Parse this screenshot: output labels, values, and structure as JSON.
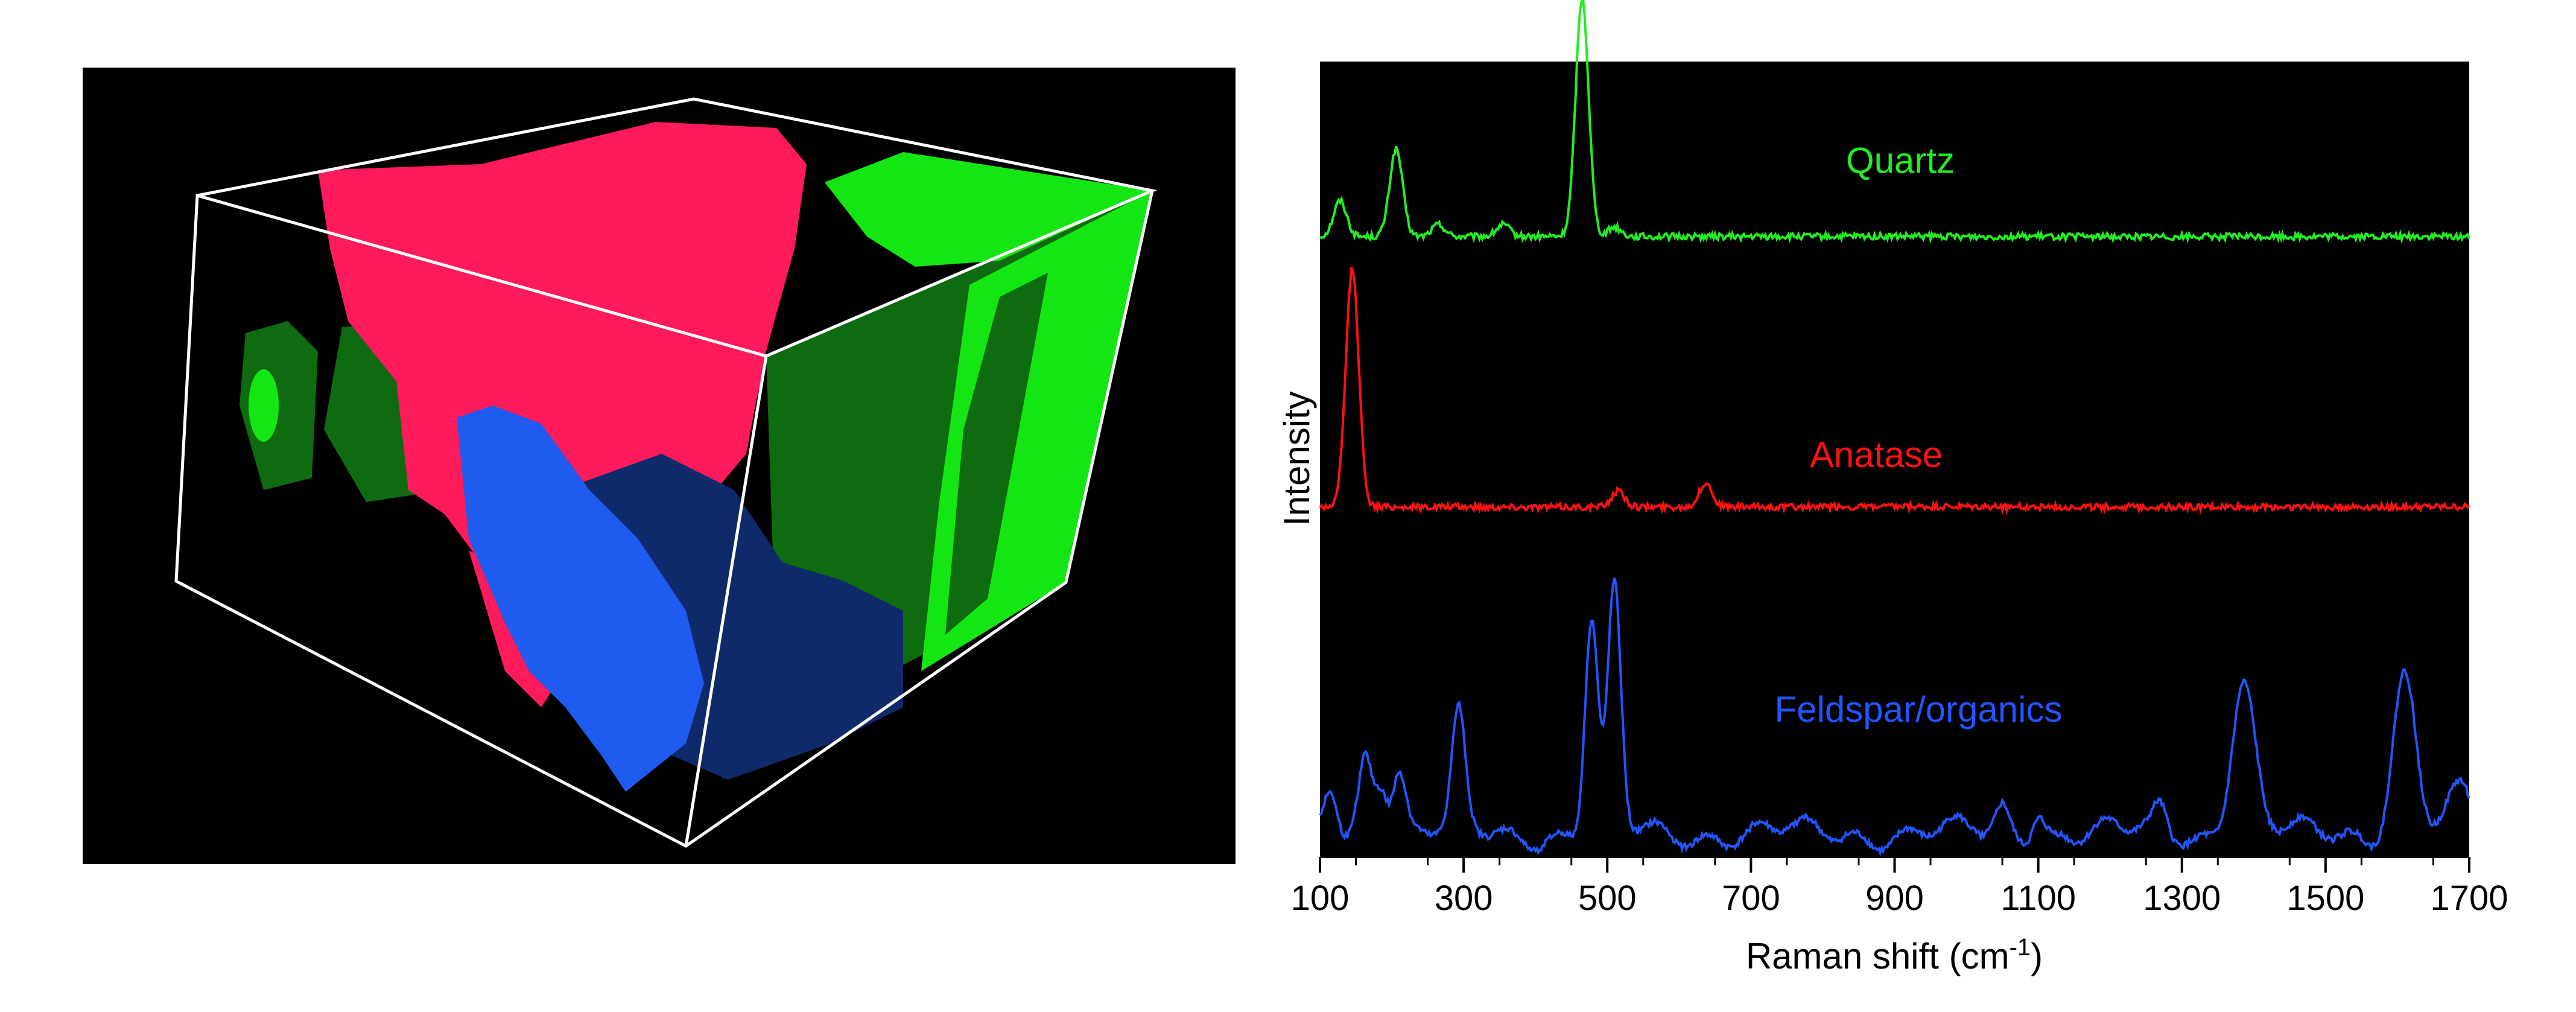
{
  "volume_render": {
    "phase_colors": {
      "anatase": "#ff1a5c",
      "quartz": "#14e614",
      "quartz_shadow": "#0f6b0f",
      "feldspar": "#1f5bef",
      "feldspar_shadow": "#0f2a6b"
    }
  },
  "chart_data": {
    "type": "line",
    "title": "",
    "xlabel": "Raman shift (cm-1)",
    "xlabel_parts": {
      "main": "Raman shift (cm",
      "sup": "-1",
      "close": ")"
    },
    "ylabel": "Intensity",
    "xlim": [
      100,
      1700
    ],
    "x_ticks": [
      100,
      300,
      500,
      700,
      900,
      1100,
      1300,
      1500,
      1700
    ],
    "y_ticks": [],
    "background": "#000000",
    "grid": false,
    "legend": "none (series labeled inline)",
    "y_scale": "arbitrary units, offset traces",
    "series": [
      {
        "name": "Quartz",
        "color": "#22ee22",
        "baseline": 0.78,
        "peaks": [
          {
            "x": 128,
            "height": 0.045
          },
          {
            "x": 206,
            "height": 0.11
          },
          {
            "x": 265,
            "height": 0.015
          },
          {
            "x": 355,
            "height": 0.015
          },
          {
            "x": 465,
            "height": 0.3
          },
          {
            "x": 510,
            "height": 0.012
          }
        ]
      },
      {
        "name": "Anatase",
        "color": "#ff1111",
        "baseline": 0.44,
        "peaks": [
          {
            "x": 145,
            "height": 0.3
          },
          {
            "x": 515,
            "height": 0.02
          },
          {
            "x": 637,
            "height": 0.03
          }
        ]
      },
      {
        "name": "Feldspar/organics",
        "color": "#2255ff",
        "baseline": 0.03,
        "peaks": [
          {
            "x": 115,
            "height": 0.06
          },
          {
            "x": 163,
            "height": 0.1
          },
          {
            "x": 185,
            "height": 0.07
          },
          {
            "x": 210,
            "height": 0.08
          },
          {
            "x": 293,
            "height": 0.14
          },
          {
            "x": 478,
            "height": 0.27
          },
          {
            "x": 510,
            "height": 0.3
          },
          {
            "x": 1050,
            "height": 0.03
          },
          {
            "x": 1100,
            "height": 0.035
          },
          {
            "x": 1270,
            "height": 0.03
          },
          {
            "x": 1385,
            "height": 0.19
          },
          {
            "x": 1610,
            "height": 0.2
          },
          {
            "x": 1690,
            "height": 0.05
          }
        ]
      }
    ]
  }
}
